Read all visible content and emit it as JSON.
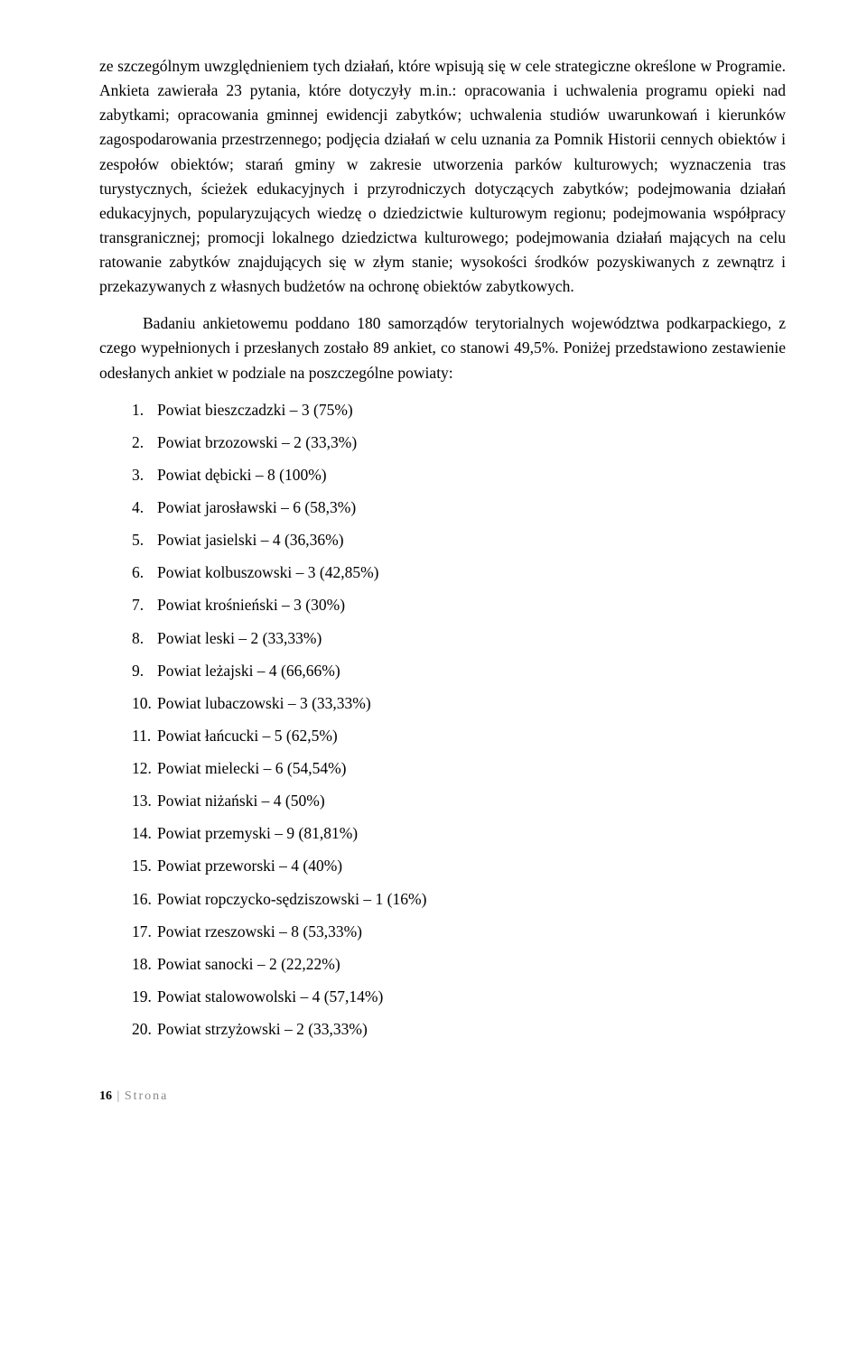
{
  "para1": "ze szczególnym uwzględnieniem tych działań, które wpisują się w cele strategiczne określone w Programie. Ankieta zawierała 23 pytania, które dotyczyły m.in.: opracowania i uchwalenia programu opieki nad zabytkami; opracowania gminnej ewidencji zabytków; uchwalenia studiów uwarunkowań i kierunków zagospodarowania przestrzennego; podjęcia działań w celu uznania za Pomnik Historii cennych obiektów i zespołów obiektów; starań gminy w zakresie utworzenia parków kulturowych; wyznaczenia tras turystycznych, ścieżek edukacyjnych i przyrodniczych dotyczących zabytków; podejmowania działań edukacyjnych, popularyzujących wiedzę o dziedzictwie kulturowym regionu; podejmowania współpracy transgranicznej; promocji lokalnego dziedzictwa kulturowego; podejmowania działań mających na celu ratowanie zabytków znajdujących się w złym stanie; wysokości środków pozyskiwanych z zewnątrz i przekazywanych z własnych budżetów na ochronę obiektów zabytkowych.",
  "para2": "Badaniu ankietowemu poddano 180 samorządów terytorialnych województwa podkarpackiego, z czego wypełnionych i przesłanych zostało 89 ankiet, co stanowi 49,5%. Poniżej przedstawiono zestawienie odesłanych ankiet w podziale na poszczególne powiaty:",
  "list": [
    {
      "n": "1.",
      "t": "Powiat bieszczadzki – 3 (75%)"
    },
    {
      "n": "2.",
      "t": "Powiat brzozowski – 2 (33,3%)"
    },
    {
      "n": "3.",
      "t": "Powiat dębicki – 8 (100%)"
    },
    {
      "n": "4.",
      "t": "Powiat jarosławski – 6 (58,3%)"
    },
    {
      "n": "5.",
      "t": "Powiat jasielski – 4 (36,36%)"
    },
    {
      "n": "6.",
      "t": "Powiat kolbuszowski – 3 (42,85%)"
    },
    {
      "n": "7.",
      "t": "Powiat krośnieński – 3 (30%)"
    },
    {
      "n": "8.",
      "t": "Powiat leski – 2 (33,33%)"
    },
    {
      "n": "9.",
      "t": "Powiat leżajski – 4 (66,66%)"
    },
    {
      "n": "10.",
      "t": "Powiat lubaczowski – 3 (33,33%)"
    },
    {
      "n": "11.",
      "t": "Powiat łańcucki – 5 (62,5%)"
    },
    {
      "n": "12.",
      "t": "Powiat mielecki – 6 (54,54%)"
    },
    {
      "n": "13.",
      "t": "Powiat niżański – 4 (50%)"
    },
    {
      "n": "14.",
      "t": "Powiat przemyski – 9 (81,81%)"
    },
    {
      "n": "15.",
      "t": "Powiat przeworski – 4 (40%)"
    },
    {
      "n": "16.",
      "t": "Powiat ropczycko-sędziszowski – 1 (16%)"
    },
    {
      "n": "17.",
      "t": "Powiat rzeszowski – 8 (53,33%)"
    },
    {
      "n": "18.",
      "t": "Powiat sanocki – 2 (22,22%)"
    },
    {
      "n": "19.",
      "t": "Powiat stalowowolski – 4 (57,14%)"
    },
    {
      "n": "20.",
      "t": "Powiat strzyżowski – 2 (33,33%)"
    }
  ],
  "footer": {
    "page": "16",
    "sep": "|",
    "label": "Strona"
  }
}
